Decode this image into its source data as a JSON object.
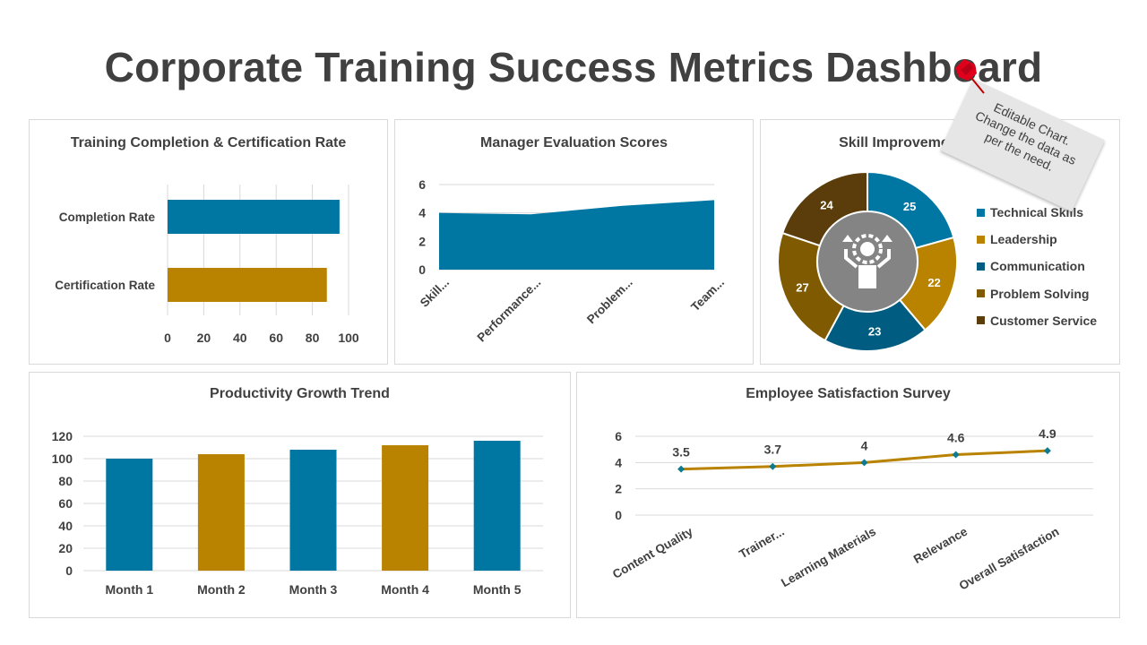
{
  "page": {
    "title": "Corporate Training Success Metrics Dashboard"
  },
  "note": {
    "text": "Editable Chart.\nChange the data as\nper the need."
  },
  "colors": {
    "blue": "#0077a3",
    "gold": "#b98300",
    "darkblue": "#005c80",
    "brown": "#7f5a00",
    "darkbrown": "#5a3d0a",
    "line": "#b98300",
    "marker": "#0e7c8e"
  },
  "chart_data": [
    {
      "id": "completion",
      "type": "bar",
      "orientation": "horizontal",
      "title": "Training Completion & Certification Rate",
      "categories": [
        "Completion Rate",
        "Certification Rate"
      ],
      "values": [
        95,
        88
      ],
      "colors": [
        "#0077a3",
        "#b98300"
      ],
      "xlim": [
        0,
        100
      ],
      "xticks": [
        "0",
        "20",
        "40",
        "60",
        "80",
        "100"
      ],
      "grid": true
    },
    {
      "id": "manager",
      "type": "area",
      "title": "Manager Evaluation Scores",
      "categories": [
        "Skill...",
        "Performance...",
        "Problem...",
        "Team..."
      ],
      "values": [
        4.0,
        3.9,
        4.5,
        4.9
      ],
      "ylim": [
        0,
        6
      ],
      "yticks": [
        "0",
        "2",
        "4",
        "6"
      ],
      "grid": true
    },
    {
      "id": "skill",
      "type": "pie",
      "title": "Skill Improvement",
      "labels": [
        "Technical Skills",
        "Leadership",
        "Communication",
        "Problem Solving",
        "Customer Service"
      ],
      "values": [
        25,
        22,
        23,
        27,
        24
      ],
      "colors": [
        "#0077a3",
        "#b98300",
        "#005c80",
        "#7f5a00",
        "#5a3d0a"
      ],
      "legend_position": "right"
    },
    {
      "id": "productivity",
      "type": "bar",
      "title": "Productivity Growth Trend",
      "categories": [
        "Month 1",
        "Month 2",
        "Month 3",
        "Month 4",
        "Month 5"
      ],
      "values": [
        100,
        104,
        108,
        112,
        116
      ],
      "colors": [
        "#0077a3",
        "#b98300",
        "#0077a3",
        "#b98300",
        "#0077a3"
      ],
      "ylim": [
        0,
        120
      ],
      "yticks": [
        "0",
        "20",
        "40",
        "60",
        "80",
        "100",
        "120"
      ],
      "grid": true
    },
    {
      "id": "satisfaction",
      "type": "line",
      "title": "Employee Satisfaction Survey",
      "categories": [
        "Content Quality",
        "Trainer...",
        "Learning Materials",
        "Relevance",
        "Overall Satisfaction"
      ],
      "values": [
        3.5,
        3.7,
        4,
        4.6,
        4.9
      ],
      "data_labels": [
        "3.5",
        "3.7",
        "4",
        "4.6",
        "4.9"
      ],
      "ylim": [
        0,
        6
      ],
      "yticks": [
        "0",
        "2",
        "4",
        "6"
      ],
      "grid": true
    }
  ]
}
